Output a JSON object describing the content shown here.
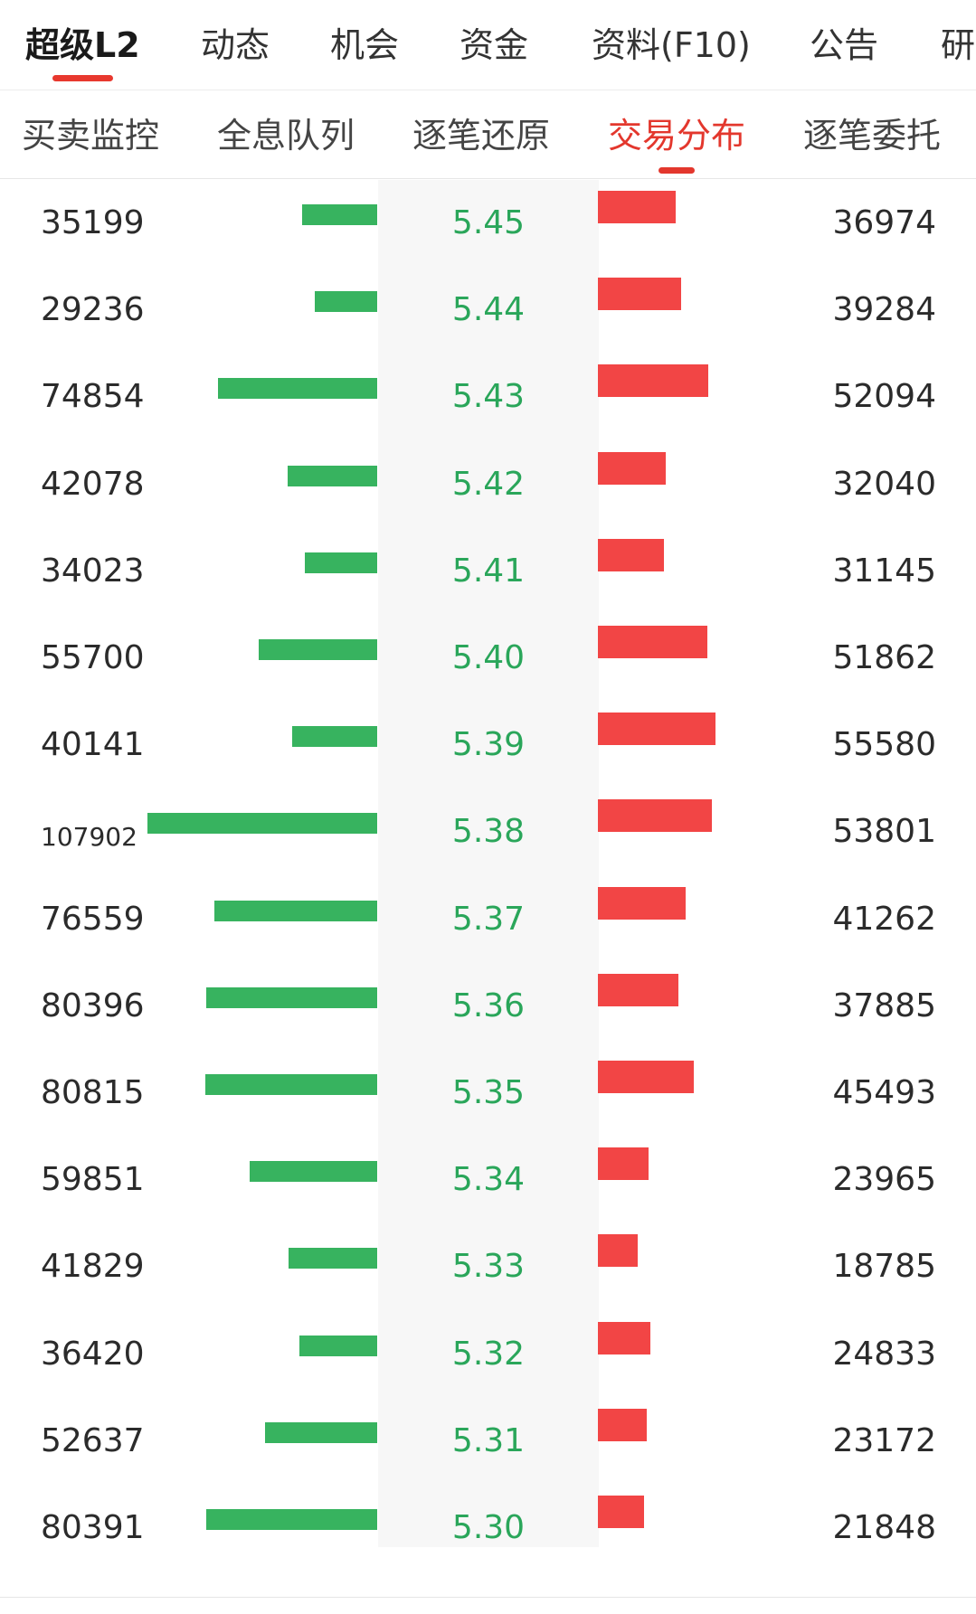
{
  "top_tabs": [
    "超级L2",
    "动态",
    "机会",
    "资金",
    "资料(F10)",
    "公告",
    "研"
  ],
  "sub_tabs": [
    "买卖监控",
    "全息队列",
    "逐笔还原",
    "交易分布",
    "逐笔委托"
  ],
  "colors": {
    "accent": "#e3372d",
    "buy_bar": "#37b35f",
    "sell_bar": "#f24545",
    "price_text": "#2aa65a"
  },
  "rows": [
    {
      "buy": "35199",
      "price": "5.45",
      "sell": "36974"
    },
    {
      "buy": "29236",
      "price": "5.44",
      "sell": "39284"
    },
    {
      "buy": "74854",
      "price": "5.43",
      "sell": "52094"
    },
    {
      "buy": "42078",
      "price": "5.42",
      "sell": "32040"
    },
    {
      "buy": "34023",
      "price": "5.41",
      "sell": "31145"
    },
    {
      "buy": "55700",
      "price": "5.40",
      "sell": "51862"
    },
    {
      "buy": "40141",
      "price": "5.39",
      "sell": "55580"
    },
    {
      "buy": "107902",
      "price": "5.38",
      "sell": "53801"
    },
    {
      "buy": "76559",
      "price": "5.37",
      "sell": "41262"
    },
    {
      "buy": "80396",
      "price": "5.36",
      "sell": "37885"
    },
    {
      "buy": "80815",
      "price": "5.35",
      "sell": "45493"
    },
    {
      "buy": "59851",
      "price": "5.34",
      "sell": "23965"
    },
    {
      "buy": "41829",
      "price": "5.33",
      "sell": "18785"
    },
    {
      "buy": "36420",
      "price": "5.32",
      "sell": "24833"
    },
    {
      "buy": "52637",
      "price": "5.31",
      "sell": "23172"
    },
    {
      "buy": "80391",
      "price": "5.30",
      "sell": "21848"
    }
  ]
}
